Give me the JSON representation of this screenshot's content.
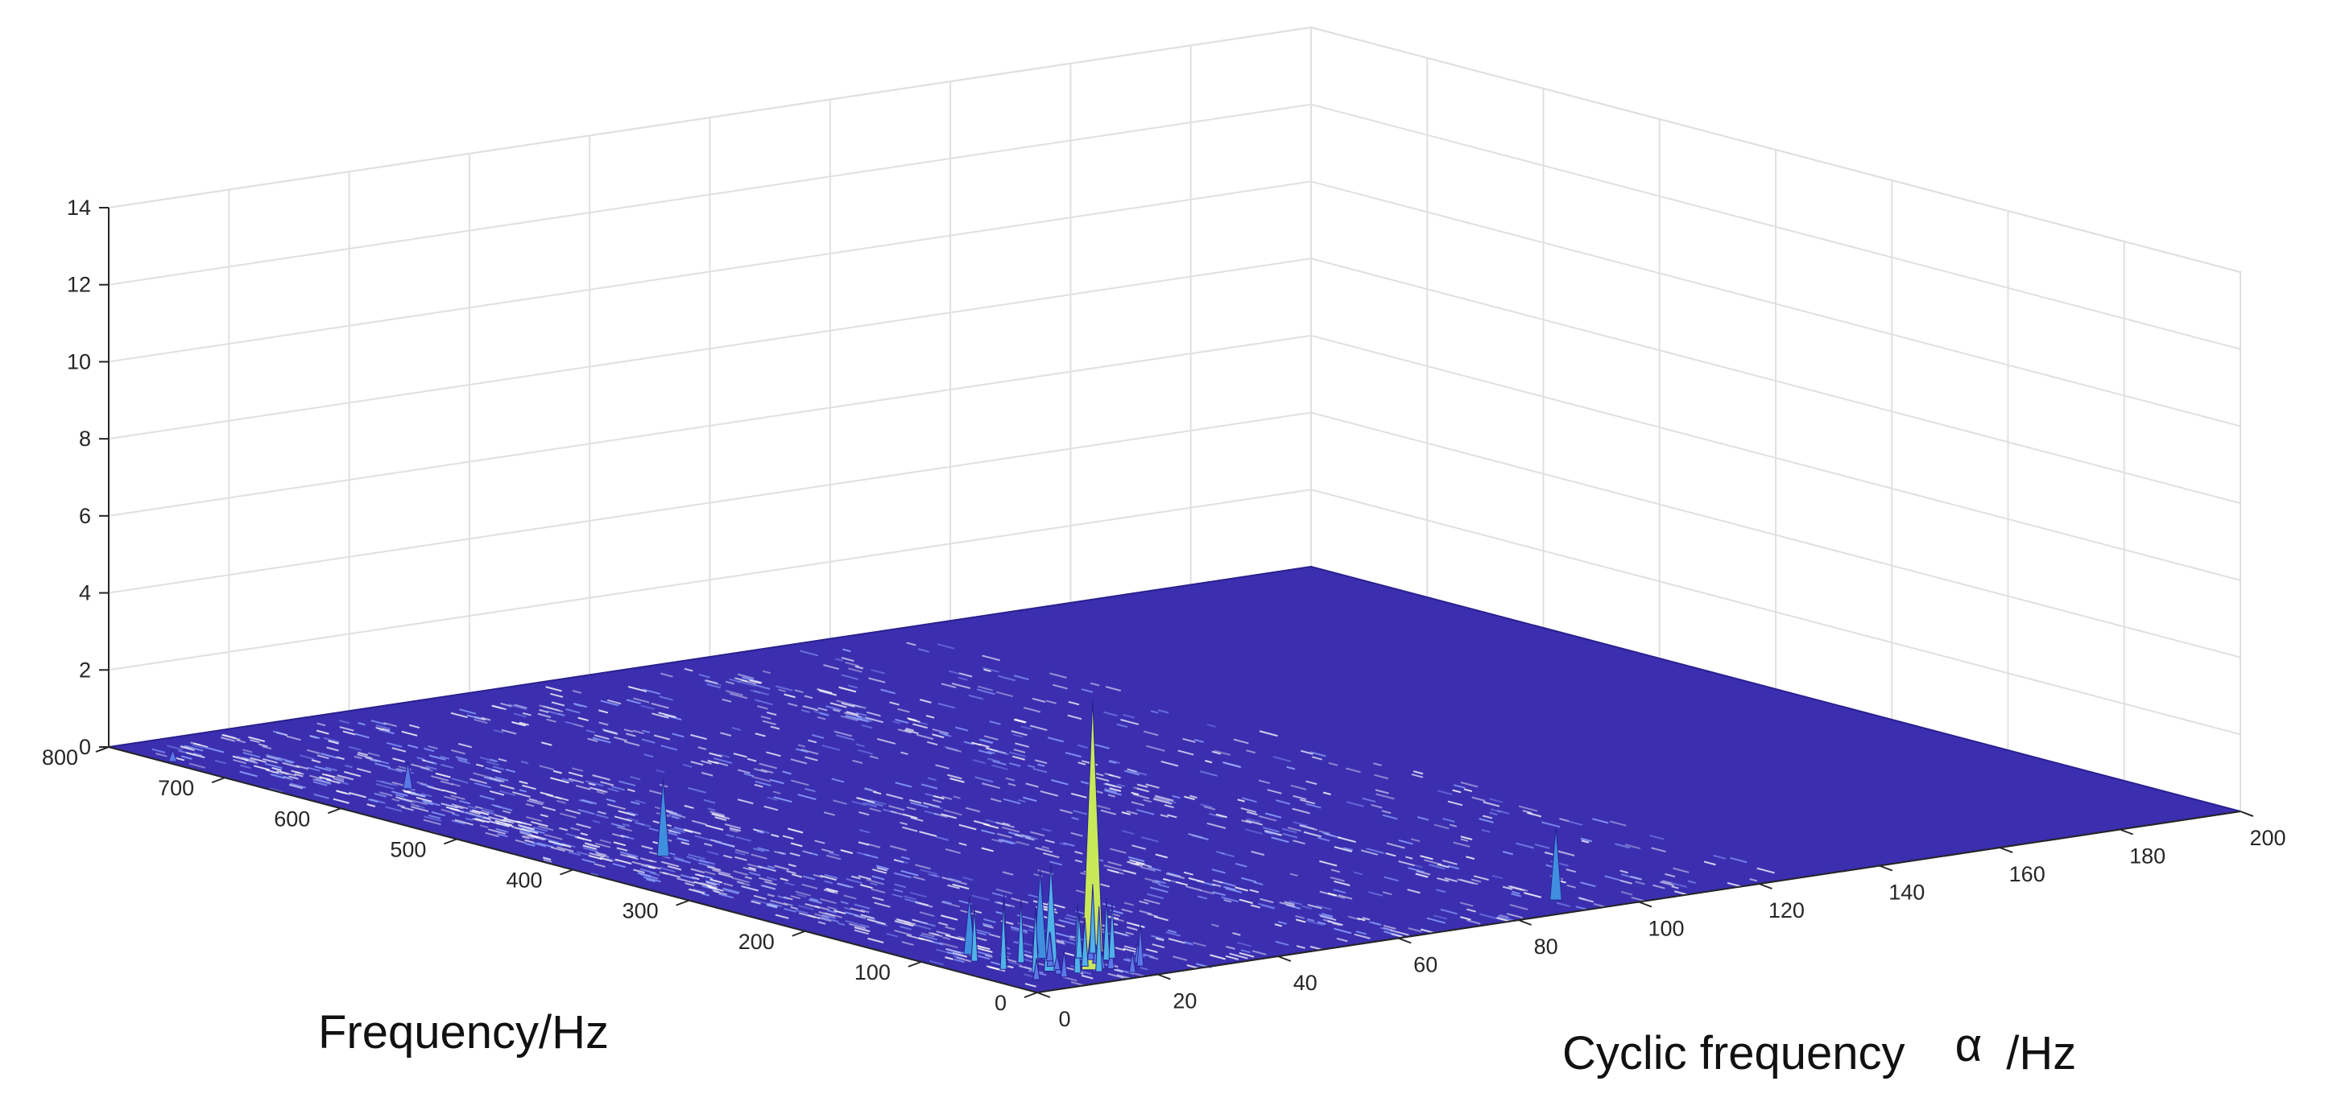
{
  "chart_data": {
    "type": "surface",
    "title": "",
    "xlabel": "Frequency/Hz",
    "ylabel_prefix": "Cyclic frequency",
    "ylabel_symbol": "α",
    "ylabel_suffix": "/Hz",
    "zlabel": "",
    "xlim": [
      0,
      800
    ],
    "ylim": [
      0,
      200
    ],
    "zlim": [
      0,
      14
    ],
    "x_ticks": [
      "0",
      "100",
      "200",
      "300",
      "400",
      "500",
      "600",
      "700",
      "800"
    ],
    "y_ticks": [
      "0",
      "20",
      "40",
      "60",
      "80",
      "100",
      "120",
      "140",
      "160",
      "180",
      "200"
    ],
    "z_ticks": [
      "0",
      "2",
      "4",
      "6",
      "8",
      "10",
      "12",
      "14"
    ],
    "grid": true,
    "colormap": "parula",
    "surface_color": "#3b2fb0",
    "peaks": [
      {
        "frequency": 30,
        "cyclic_frequency": 15,
        "amplitude": 7.0
      },
      {
        "frequency": 40,
        "cyclic_frequency": 10,
        "amplitude": 2.8
      },
      {
        "frequency": 70,
        "cyclic_frequency": 14,
        "amplitude": 2.3
      },
      {
        "frequency": 100,
        "cyclic_frequency": 8,
        "amplitude": 1.5
      },
      {
        "frequency": 400,
        "cyclic_frequency": 15,
        "amplitude": 2.0
      },
      {
        "frequency": 620,
        "cyclic_frequency": 15,
        "amplitude": 0.7
      },
      {
        "frequency": 30,
        "cyclic_frequency": 92,
        "amplitude": 1.9
      },
      {
        "frequency": 750,
        "cyclic_frequency": 1,
        "amplitude": 0.3
      }
    ]
  }
}
